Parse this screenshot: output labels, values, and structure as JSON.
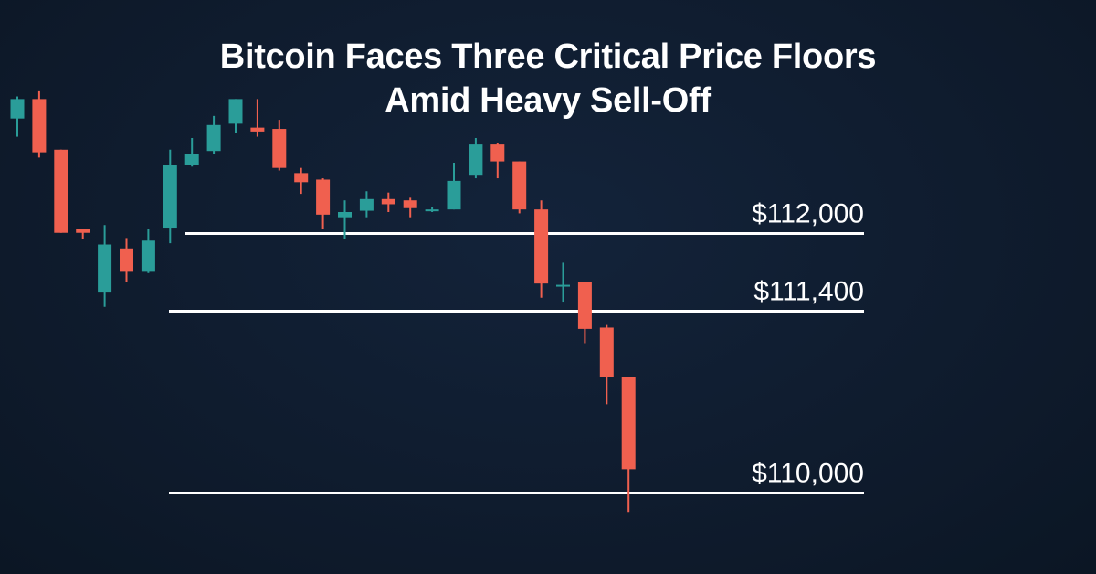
{
  "title_line1": "Bitcoin Faces Three Critical Price Floors",
  "title_line2": "Amid Heavy Sell-Off",
  "colors": {
    "background": "#0f1c2e",
    "up": "#2a9d99",
    "down": "#f0604f",
    "level_line": "#ffffff"
  },
  "chart_data": {
    "type": "candlestick",
    "title": "Bitcoin Faces Three Critical Price Floors Amid Heavy Sell-Off",
    "xlabel": "",
    "ylabel": "",
    "grid": false,
    "ylim": [
      109500,
      113300
    ],
    "candles": [
      {
        "open": 112880,
        "high": 113050,
        "low": 112740,
        "close": 113030
      },
      {
        "open": 113030,
        "high": 113090,
        "low": 112580,
        "close": 112620
      },
      {
        "open": 112640,
        "high": 112640,
        "low": 112000,
        "close": 112000
      },
      {
        "open": 112030,
        "high": 112030,
        "low": 111950,
        "close": 112000
      },
      {
        "open": 111540,
        "high": 112060,
        "low": 111430,
        "close": 111910
      },
      {
        "open": 111880,
        "high": 111960,
        "low": 111620,
        "close": 111700
      },
      {
        "open": 111700,
        "high": 112030,
        "low": 111690,
        "close": 111940
      },
      {
        "open": 112040,
        "high": 112640,
        "low": 111920,
        "close": 112520
      },
      {
        "open": 112520,
        "high": 112730,
        "low": 112510,
        "close": 112610
      },
      {
        "open": 112630,
        "high": 112900,
        "low": 112610,
        "close": 112830
      },
      {
        "open": 112840,
        "high": 113030,
        "low": 112770,
        "close": 113030
      },
      {
        "open": 112810,
        "high": 113030,
        "low": 112740,
        "close": 112780
      },
      {
        "open": 112800,
        "high": 112870,
        "low": 112480,
        "close": 112500
      },
      {
        "open": 112460,
        "high": 112500,
        "low": 112300,
        "close": 112390
      },
      {
        "open": 112410,
        "high": 112420,
        "low": 112030,
        "close": 112140
      },
      {
        "open": 112120,
        "high": 112250,
        "low": 111950,
        "close": 112160
      },
      {
        "open": 112170,
        "high": 112320,
        "low": 112120,
        "close": 112260
      },
      {
        "open": 112260,
        "high": 112310,
        "low": 112160,
        "close": 112220
      },
      {
        "open": 112250,
        "high": 112270,
        "low": 112120,
        "close": 112190
      },
      {
        "open": 112170,
        "high": 112200,
        "low": 112160,
        "close": 112180
      },
      {
        "open": 112180,
        "high": 112540,
        "low": 112180,
        "close": 112400
      },
      {
        "open": 112440,
        "high": 112730,
        "low": 112420,
        "close": 112680
      },
      {
        "open": 112680,
        "high": 112690,
        "low": 112420,
        "close": 112550
      },
      {
        "open": 112550,
        "high": 112550,
        "low": 112150,
        "close": 112180
      },
      {
        "open": 112180,
        "high": 112250,
        "low": 111500,
        "close": 111610
      },
      {
        "open": 111600,
        "high": 111770,
        "low": 111470,
        "close": 111600
      },
      {
        "open": 111620,
        "high": 111620,
        "low": 111150,
        "close": 111260
      },
      {
        "open": 111270,
        "high": 111290,
        "low": 110680,
        "close": 110890
      },
      {
        "open": 110890,
        "high": 110890,
        "low": 109850,
        "close": 110180
      }
    ],
    "levels": [
      {
        "value": 112000,
        "label": "$112,000"
      },
      {
        "value": 111400,
        "label": "$111,400"
      },
      {
        "value": 110000,
        "label": "$110,000"
      }
    ]
  }
}
